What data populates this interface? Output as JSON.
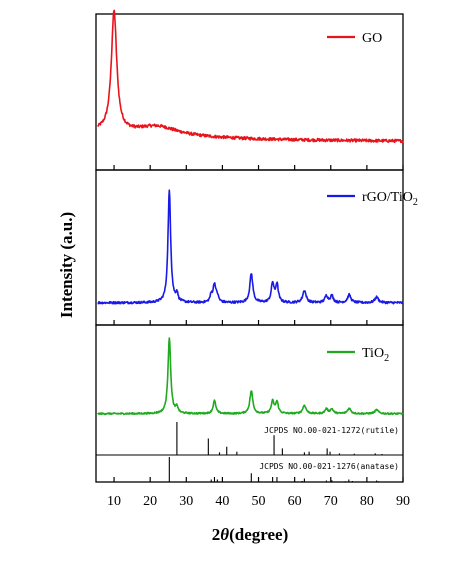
{
  "chart_data": {
    "type": "line",
    "title": "",
    "xlabel": "2θ (degree)",
    "ylabel": "Intensity (a.u.)",
    "xlim": [
      5,
      90
    ],
    "x_ticks": [
      10,
      20,
      30,
      40,
      50,
      60,
      70,
      80,
      90
    ],
    "grid": false,
    "stacked_panels": true,
    "panels": [
      {
        "legend": "GO",
        "legend_position": "top-right",
        "color": "#e8141c",
        "peaks": [
          {
            "x": 10.0,
            "height": 1.0,
            "width": 0.9
          },
          {
            "x": 22.0,
            "height": 0.08,
            "width": 7.0
          }
        ],
        "baseline": 0.07,
        "noise": 0.025
      },
      {
        "legend": "rGO/TiO",
        "legend_subscript": "2",
        "legend_position": "top-right",
        "color": "#1a1ae6",
        "peaks": [
          {
            "x": 25.3,
            "height": 1.0,
            "width": 0.45
          },
          {
            "x": 27.4,
            "height": 0.07,
            "width": 0.35
          },
          {
            "x": 36.9,
            "height": 0.06,
            "width": 0.4
          },
          {
            "x": 37.8,
            "height": 0.16,
            "width": 0.45
          },
          {
            "x": 38.6,
            "height": 0.05,
            "width": 0.4
          },
          {
            "x": 48.0,
            "height": 0.26,
            "width": 0.5
          },
          {
            "x": 53.9,
            "height": 0.17,
            "width": 0.45
          },
          {
            "x": 55.1,
            "height": 0.16,
            "width": 0.45
          },
          {
            "x": 62.7,
            "height": 0.11,
            "width": 0.55
          },
          {
            "x": 68.8,
            "height": 0.06,
            "width": 0.5
          },
          {
            "x": 70.3,
            "height": 0.06,
            "width": 0.5
          },
          {
            "x": 75.1,
            "height": 0.07,
            "width": 0.55
          },
          {
            "x": 82.7,
            "height": 0.05,
            "width": 0.6
          }
        ],
        "baseline": 0.02,
        "noise": 0.02
      },
      {
        "legend": "TiO",
        "legend_subscript": "2",
        "legend_position": "top-right",
        "color": "#1faa1f",
        "peaks": [
          {
            "x": 25.3,
            "height": 1.0,
            "width": 0.45
          },
          {
            "x": 27.4,
            "height": 0.08,
            "width": 0.35
          },
          {
            "x": 37.8,
            "height": 0.17,
            "width": 0.45
          },
          {
            "x": 48.0,
            "height": 0.3,
            "width": 0.5
          },
          {
            "x": 53.9,
            "height": 0.16,
            "width": 0.45
          },
          {
            "x": 55.1,
            "height": 0.15,
            "width": 0.45
          },
          {
            "x": 62.7,
            "height": 0.11,
            "width": 0.55
          },
          {
            "x": 68.8,
            "height": 0.06,
            "width": 0.5
          },
          {
            "x": 70.3,
            "height": 0.06,
            "width": 0.5
          },
          {
            "x": 75.1,
            "height": 0.07,
            "width": 0.55
          },
          {
            "x": 82.7,
            "height": 0.05,
            "width": 0.6
          }
        ],
        "baseline": 0.03,
        "noise": 0.02
      }
    ],
    "reference_patterns": [
      {
        "label": "JCPDS NO.00-021-1272(rutile)",
        "sticks": [
          {
            "x": 27.4,
            "rel": 1.0
          },
          {
            "x": 36.1,
            "rel": 0.5
          },
          {
            "x": 39.2,
            "rel": 0.08
          },
          {
            "x": 41.2,
            "rel": 0.25
          },
          {
            "x": 44.0,
            "rel": 0.1
          },
          {
            "x": 54.3,
            "rel": 0.6
          },
          {
            "x": 56.6,
            "rel": 0.2
          },
          {
            "x": 62.7,
            "rel": 0.08
          },
          {
            "x": 64.0,
            "rel": 0.1
          },
          {
            "x": 69.0,
            "rel": 0.2
          },
          {
            "x": 69.8,
            "rel": 0.1
          },
          {
            "x": 72.4,
            "rel": 0.05
          },
          {
            "x": 76.5,
            "rel": 0.04
          },
          {
            "x": 82.3,
            "rel": 0.05
          },
          {
            "x": 84.2,
            "rel": 0.03
          }
        ]
      },
      {
        "label": "JCPDS NO.00-021-1276(anatase)",
        "sticks": [
          {
            "x": 25.3,
            "rel": 1.0
          },
          {
            "x": 36.9,
            "rel": 0.1
          },
          {
            "x": 37.8,
            "rel": 0.2
          },
          {
            "x": 38.6,
            "rel": 0.1
          },
          {
            "x": 48.0,
            "rel": 0.35
          },
          {
            "x": 53.9,
            "rel": 0.2
          },
          {
            "x": 55.1,
            "rel": 0.2
          },
          {
            "x": 62.1,
            "rel": 0.04
          },
          {
            "x": 62.7,
            "rel": 0.14
          },
          {
            "x": 68.8,
            "rel": 0.06
          },
          {
            "x": 70.3,
            "rel": 0.07
          },
          {
            "x": 74.0,
            "rel": 0.03
          },
          {
            "x": 75.0,
            "rel": 0.1
          },
          {
            "x": 76.0,
            "rel": 0.04
          },
          {
            "x": 82.7,
            "rel": 0.06
          },
          {
            "x": 83.2,
            "rel": 0.03
          }
        ]
      }
    ]
  }
}
